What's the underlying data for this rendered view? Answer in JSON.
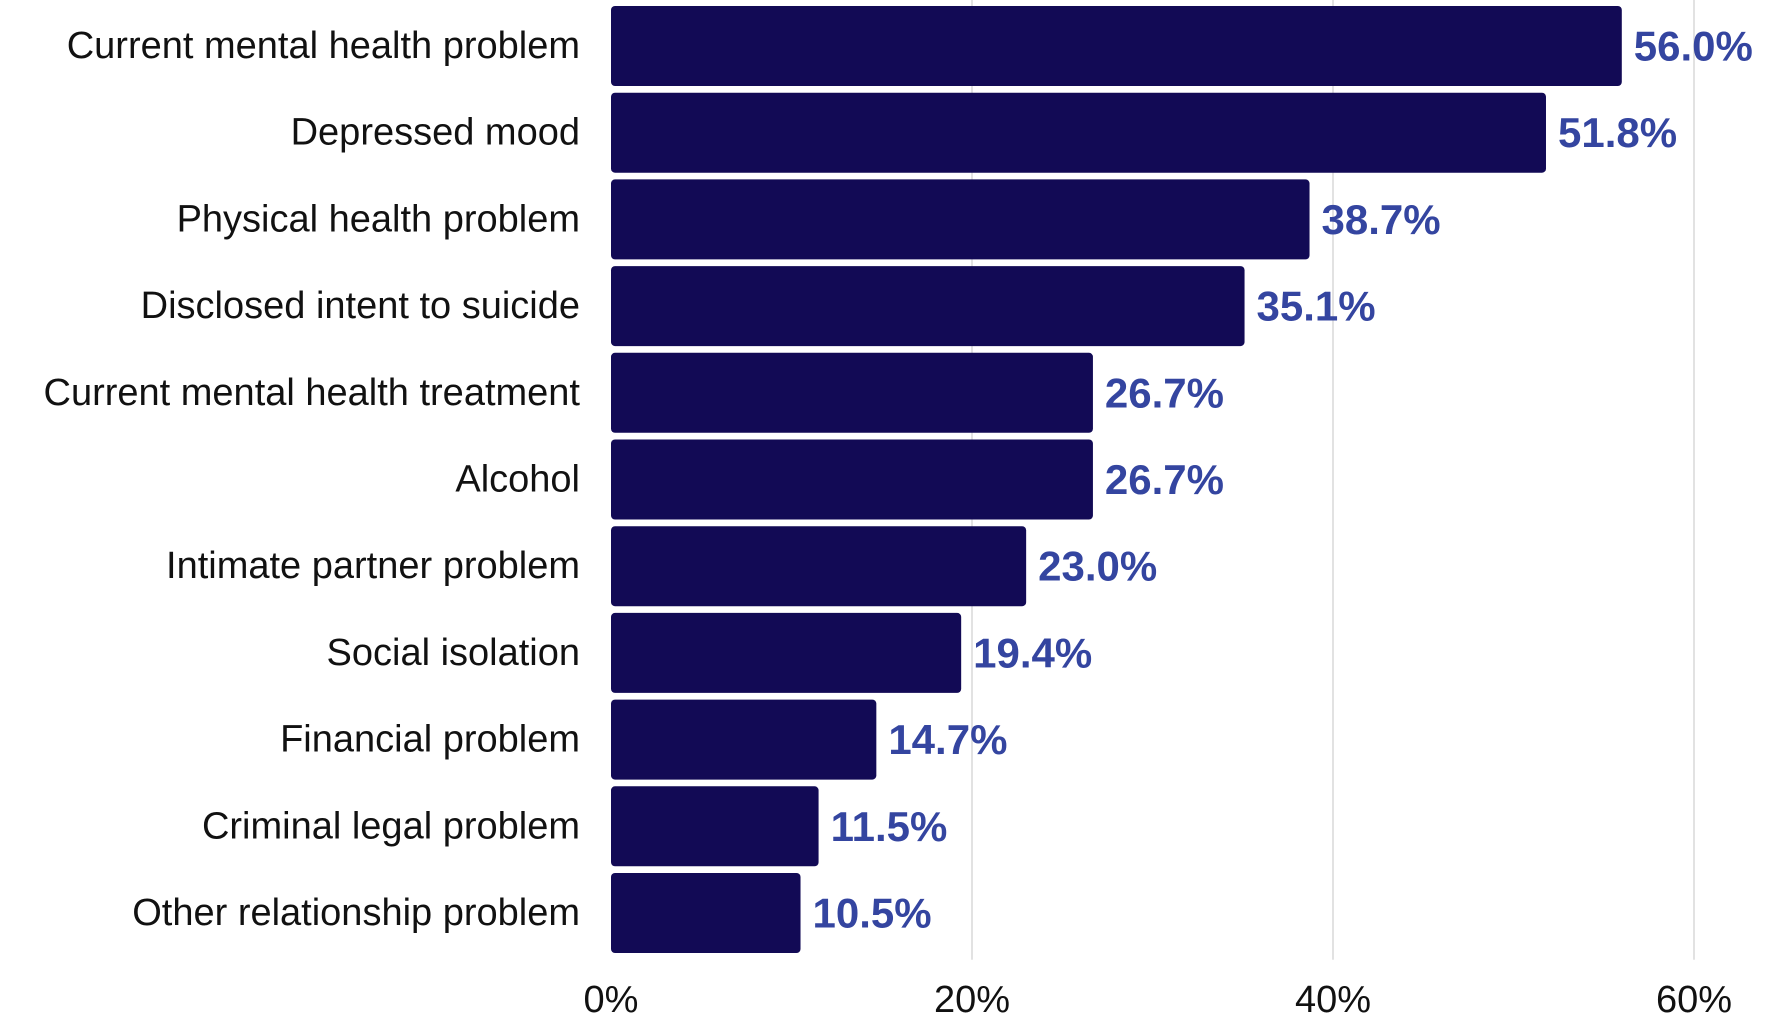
{
  "chart_data": {
    "type": "bar",
    "orientation": "horizontal",
    "categories": [
      "Current mental health problem",
      "Depressed mood",
      "Physical health problem",
      "Disclosed intent to suicide",
      "Current mental health treatment",
      "Alcohol",
      "Intimate partner problem",
      "Social isolation",
      "Financial problem",
      "Criminal legal problem",
      "Other relationship problem"
    ],
    "values": [
      56.0,
      51.8,
      38.7,
      35.1,
      26.7,
      26.7,
      23.0,
      19.4,
      14.7,
      11.5,
      10.5
    ],
    "value_labels": [
      "56.0%",
      "51.8%",
      "38.7%",
      "35.1%",
      "26.7%",
      "26.7%",
      "23.0%",
      "19.4%",
      "14.7%",
      "11.5%",
      "10.5%"
    ],
    "x_ticks": [
      0,
      20,
      40,
      60
    ],
    "x_tick_labels": [
      "0%",
      "20%",
      "40%",
      "60%"
    ],
    "xlim": [
      0,
      60
    ],
    "grid": true,
    "legend": "none",
    "colors": {
      "bar": "#120a55",
      "value_label": "#3445a0",
      "grid": "#d9d9d9"
    }
  }
}
